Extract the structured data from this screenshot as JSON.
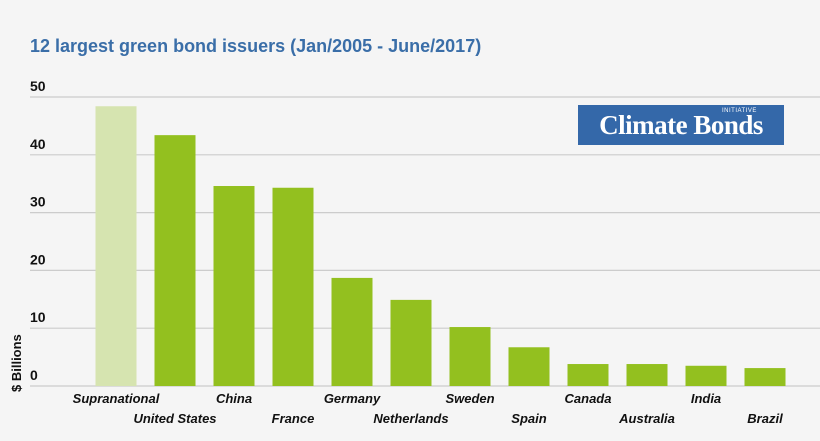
{
  "chart_data": {
    "type": "bar",
    "title": "12 largest green bond issuers (Jan/2005 - June/2017)",
    "xlabel": "",
    "ylabel": "$ Billions",
    "ylim": [
      0,
      50
    ],
    "yticks": [
      0,
      10,
      20,
      30,
      40,
      50
    ],
    "grid": true,
    "categories": [
      "Supranational",
      "United States",
      "China",
      "France",
      "Germany",
      "Netherlands",
      "Sweden",
      "Spain",
      "Canada",
      "Australia",
      "India",
      "Brazil"
    ],
    "values": [
      48.4,
      43.4,
      34.6,
      34.3,
      18.7,
      14.9,
      10.2,
      6.7,
      3.8,
      3.8,
      3.5,
      3.1
    ],
    "colors": {
      "highlight": "#d6e4b0",
      "default": "#93c01f",
      "grid": "#cccccc",
      "title": "#3a6ea8"
    }
  },
  "logo": {
    "text": "Climate Bonds",
    "sub": "INITIATIVE"
  }
}
